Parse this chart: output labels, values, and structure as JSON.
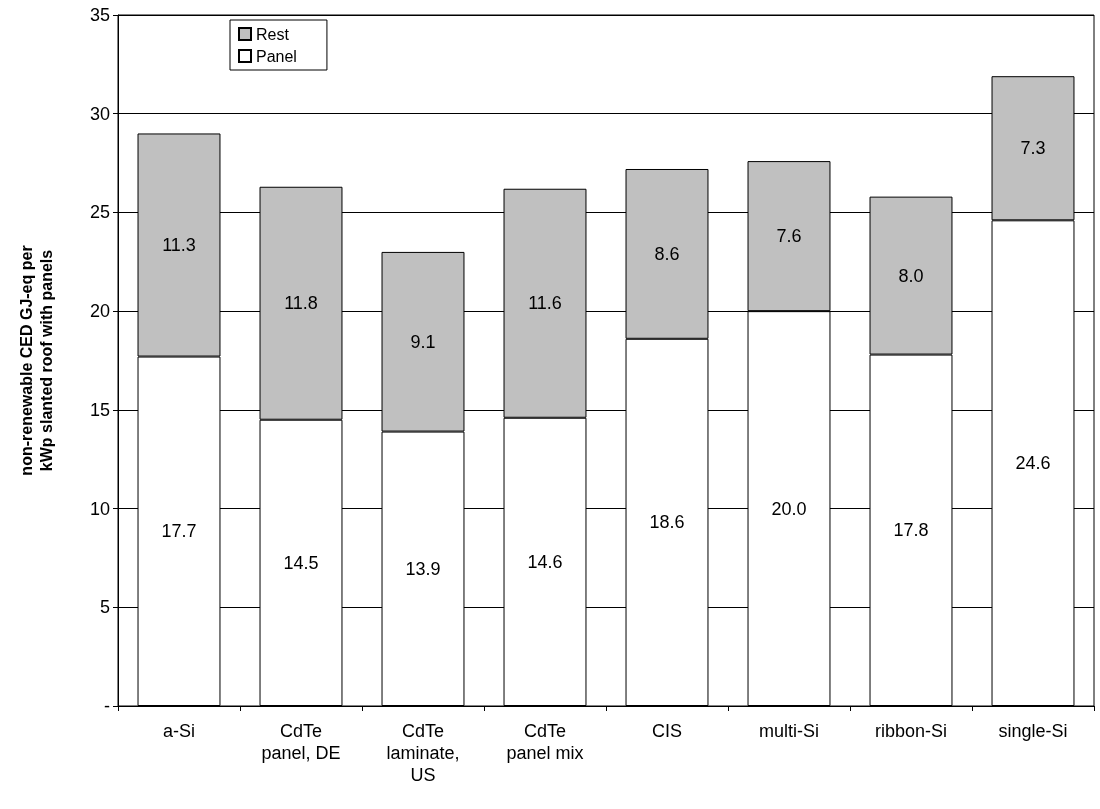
{
  "chart_data": {
    "type": "bar",
    "stacked": true,
    "ylabel": "non-renewable CED GJ-eq per\nkWp slanted roof with panels",
    "categories": [
      "a-Si",
      "CdTe\npanel, DE",
      "CdTe\nlaminate,\nUS",
      "CdTe\npanel mix",
      "CIS",
      "multi-Si",
      "ribbon-Si",
      "single-Si"
    ],
    "series": [
      {
        "name": "Panel",
        "color": "#ffffff",
        "values": [
          17.7,
          14.5,
          13.9,
          14.6,
          18.6,
          20.0,
          17.8,
          24.6
        ],
        "value_labels": [
          "17.7",
          "14.5",
          "13.9",
          "14.6",
          "18.6",
          "20.0",
          "17.8",
          "24.6"
        ]
      },
      {
        "name": "Rest",
        "color": "#c0c0c0",
        "values": [
          11.3,
          11.8,
          9.1,
          11.6,
          8.6,
          7.6,
          8.0,
          7.3
        ],
        "value_labels": [
          "11.3",
          "11.8",
          "9.1",
          "11.6",
          "8.6",
          "7.6",
          "8.0",
          "7.3"
        ]
      }
    ],
    "ylim": [
      0,
      35
    ],
    "yticks": [
      {
        "value": 0,
        "label": "-"
      },
      5,
      10,
      15,
      20,
      25,
      30,
      35
    ],
    "grid": "y",
    "legend": "top left"
  }
}
